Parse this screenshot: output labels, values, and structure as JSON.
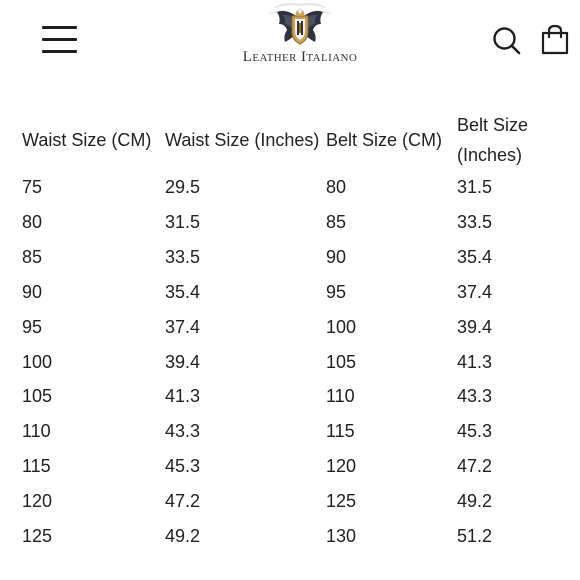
{
  "header": {
    "brand": "Leather Italiano",
    "menu_icon": "hamburger-menu-icon",
    "search_icon": "search-icon",
    "cart_icon": "shopping-bag-icon",
    "logo_icon": "winged-crest-logo-icon"
  },
  "table": {
    "headers": [
      "Waist Size (CM)",
      "Waist Size (Inches)",
      "Belt Size (CM)",
      "Belt Size (Inches)"
    ],
    "rows": [
      [
        "75",
        "29.5",
        "80",
        "31.5"
      ],
      [
        "80",
        "31.5",
        "85",
        "33.5"
      ],
      [
        "85",
        "33.5",
        "90",
        "35.4"
      ],
      [
        "90",
        "35.4",
        "95",
        "37.4"
      ],
      [
        "95",
        "37.4",
        "100",
        "39.4"
      ],
      [
        "100",
        "39.4",
        "105",
        "41.3"
      ],
      [
        "105",
        "41.3",
        "110",
        "43.3"
      ],
      [
        "110",
        "43.3",
        "115",
        "45.3"
      ],
      [
        "115",
        "45.3",
        "120",
        "47.2"
      ],
      [
        "120",
        "47.2",
        "125",
        "49.2"
      ],
      [
        "125",
        "49.2",
        "130",
        "51.2"
      ]
    ]
  }
}
